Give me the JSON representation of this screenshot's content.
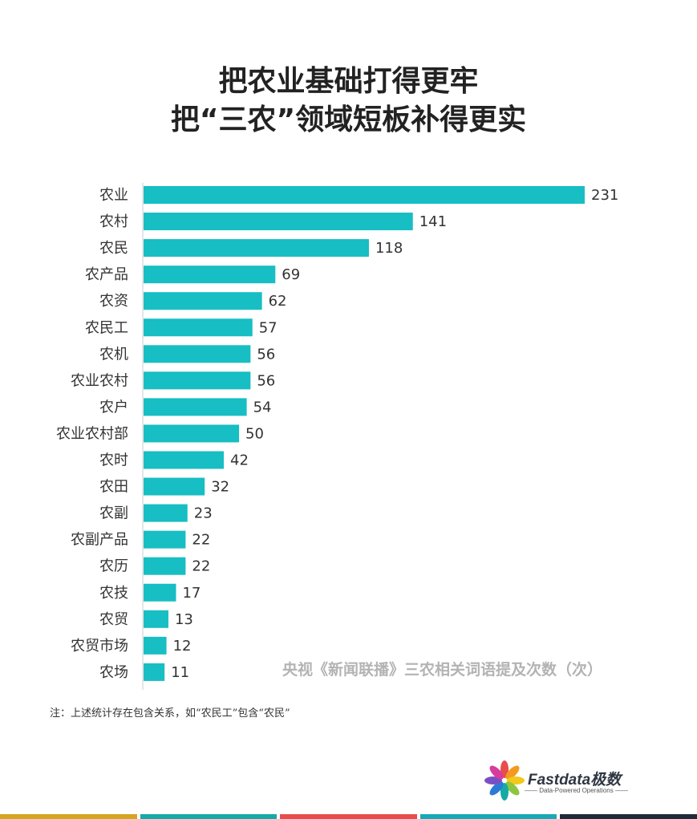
{
  "title_lines": [
    "把农业基础打得更牢",
    "把“三农”领域短板补得更实"
  ],
  "chart_data": {
    "type": "bar",
    "orientation": "horizontal",
    "categories": [
      "农业",
      "农村",
      "农民",
      "农产品",
      "农资",
      "农民工",
      "农机",
      "农业农村",
      "农户",
      "农业农村部",
      "农时",
      "农田",
      "农副",
      "农副产品",
      "农历",
      "农技",
      "农贸",
      "农贸市场",
      "农场"
    ],
    "values": [
      231,
      141,
      118,
      69,
      62,
      57,
      56,
      56,
      54,
      50,
      42,
      32,
      23,
      22,
      22,
      17,
      13,
      12,
      11
    ],
    "bar_color": "#17bec3",
    "xlim": [
      0,
      231
    ],
    "grid": false,
    "annotation": "央视《新闻联播》三农相关词语提及次数（次）"
  },
  "note": "注：上述统计存在包含关系，如“农民工”包含“农民”",
  "logo": {
    "name": "Fastdata极数",
    "tagline": "—— Data-Powered Operations ——"
  },
  "footer_colors": [
    "#d4a520",
    "#17a9a6",
    "#e84c4c",
    "#17a9b6",
    "#1f2a3a"
  ]
}
